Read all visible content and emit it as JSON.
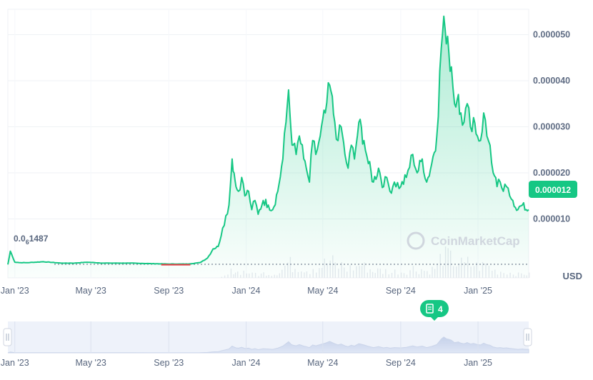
{
  "chart_data": {
    "type": "area",
    "currency_label": "USD",
    "watermark": "CoinMarketCap",
    "start_price_label": {
      "prefix": "0.0",
      "zeros": "6",
      "digits": "1487"
    },
    "current_price_label": "0.000012",
    "events_badge_count": "4",
    "y_ticks": [
      "0.000010",
      "0.000020",
      "0.000030",
      "0.000040",
      "0.000050"
    ],
    "y_tick_values": [
      1e-05,
      2e-05,
      3e-05,
      4e-05,
      5e-05
    ],
    "ylim": [
      -2.8e-06,
      5.55e-05
    ],
    "x_ticks": [
      "Jan '23",
      "May '23",
      "Sep '23",
      "Jan '24",
      "May '24",
      "Sep '24",
      "Jan '25"
    ],
    "x_tick_dates": [
      "2023-01-01",
      "2023-05-01",
      "2023-09-01",
      "2024-01-01",
      "2024-05-01",
      "2024-09-01",
      "2025-01-01"
    ],
    "date_range": [
      "2022-12-21",
      "2025-03-22"
    ],
    "colors": {
      "line": "#16c784",
      "baseline": "#58667e",
      "grid": "#eff2f5",
      "navigator": "#e3e9f7"
    },
    "series": [
      {
        "x": [
          "2022-12-21",
          "2022-12-25",
          "2023-01-01",
          "2023-01-10",
          "2023-01-20",
          "2023-02-15",
          "2023-03-15",
          "2023-04-05",
          "2023-04-25",
          "2023-05-20",
          "2023-06-30",
          "2023-08-01",
          "2023-09-01",
          "2023-10-01",
          "2023-10-20",
          "2023-11-01",
          "2023-11-10",
          "2023-11-18",
          "2023-11-25",
          "2023-12-05",
          "2023-12-10",
          "2023-12-13",
          "2023-12-16",
          "2023-12-20",
          "2023-12-25",
          "2023-12-30",
          "2024-01-05",
          "2024-01-10",
          "2024-01-15",
          "2024-01-20",
          "2024-01-28",
          "2024-02-05",
          "2024-02-12",
          "2024-02-20",
          "2024-02-28",
          "2024-03-04",
          "2024-03-08",
          "2024-03-12",
          "2024-03-15",
          "2024-03-20",
          "2024-03-25",
          "2024-04-01",
          "2024-04-05",
          "2024-04-10",
          "2024-04-15",
          "2024-04-20",
          "2024-04-27",
          "2024-05-05",
          "2024-05-12",
          "2024-05-20",
          "2024-05-25",
          "2024-05-30",
          "2024-06-05",
          "2024-06-10",
          "2024-06-15",
          "2024-06-20",
          "2024-06-27",
          "2024-07-05",
          "2024-07-12",
          "2024-07-20",
          "2024-07-28",
          "2024-08-05",
          "2024-08-10",
          "2024-08-15",
          "2024-08-22",
          "2024-09-01",
          "2024-09-10",
          "2024-09-20",
          "2024-09-27",
          "2024-10-05",
          "2024-10-12",
          "2024-10-20",
          "2024-10-28",
          "2024-11-04",
          "2024-11-08",
          "2024-11-12",
          "2024-11-16",
          "2024-11-20",
          "2024-11-25",
          "2024-12-01",
          "2024-12-05",
          "2024-12-10",
          "2024-12-15",
          "2024-12-20",
          "2024-12-25",
          "2024-12-31",
          "2025-01-05",
          "2025-01-10",
          "2025-01-15",
          "2025-01-20",
          "2025-01-25",
          "2025-01-31",
          "2025-02-05",
          "2025-02-10",
          "2025-02-15",
          "2025-02-20",
          "2025-02-25",
          "2025-03-05",
          "2025-03-12",
          "2025-03-18",
          "2025-03-22"
        ],
        "y": [
          1e-07,
          3e-06,
          6e-07,
          5e-07,
          5e-07,
          7e-07,
          4e-07,
          4e-07,
          6e-07,
          4e-07,
          4e-07,
          3e-07,
          2e-07,
          2e-07,
          5e-07,
          1.5e-06,
          3.5e-06,
          4e-06,
          8e-06,
          1.3e-05,
          2.3e-05,
          2e-05,
          1.7e-05,
          1.6e-05,
          1.9e-05,
          1.5e-05,
          1.6e-05,
          1.2e-05,
          1.4e-05,
          1.1e-05,
          1.4e-05,
          1.3e-05,
          1.2e-05,
          1.6e-05,
          2.3e-05,
          3.1e-05,
          3.8e-05,
          2.9e-05,
          2.6e-05,
          2.4e-05,
          2.8e-05,
          2.3e-05,
          2.1e-05,
          1.8e-05,
          2.7e-05,
          2.4e-05,
          2.8e-05,
          3.3e-05,
          3.9e-05,
          3.1e-05,
          2.7e-05,
          3e-05,
          2.4e-05,
          2.1e-05,
          2.6e-05,
          2.3e-05,
          3.1e-05,
          2.7e-05,
          2.2e-05,
          1.8e-05,
          2.1e-05,
          1.7e-05,
          1.9e-05,
          1.6e-05,
          1.8e-05,
          1.7e-05,
          1.9e-05,
          2.4e-05,
          2e-05,
          2.3e-05,
          1.8e-05,
          2.2e-05,
          2.8e-05,
          4.7e-05,
          5.4e-05,
          4.8e-05,
          4.6e-05,
          4.3e-05,
          3.5e-05,
          3.7e-05,
          3.3e-05,
          3.1e-05,
          3.5e-05,
          3e-05,
          3.2e-05,
          2.8e-05,
          2.7e-05,
          3.3e-05,
          2.8e-05,
          2.6e-05,
          2e-05,
          1.7e-05,
          1.8e-05,
          1.6e-05,
          1.7e-05,
          1.5e-05,
          1.4e-05,
          1.2e-05,
          1.3e-05,
          1.2e-05,
          1.2e-05
        ]
      }
    ],
    "volume_note": "volume bars (unlabeled)",
    "grid": true
  }
}
